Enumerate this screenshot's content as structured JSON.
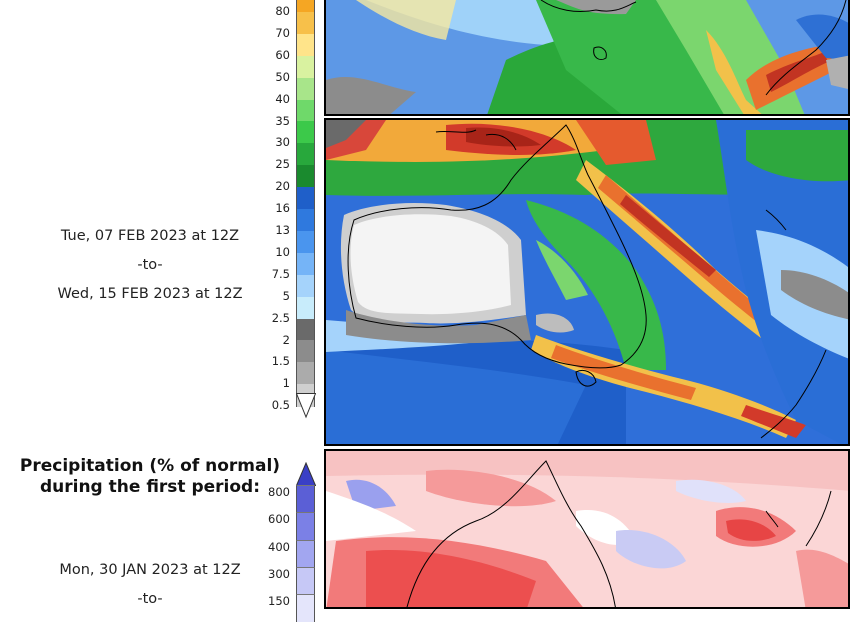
{
  "precip_scale": {
    "labels": [
      "80",
      "70",
      "60",
      "50",
      "40",
      "35",
      "30",
      "25",
      "20",
      "16",
      "13",
      "10",
      "7.5",
      "5",
      "2.5",
      "2",
      "1.5",
      "1",
      "0.5"
    ],
    "colors": [
      "#f5a623",
      "#f7c04a",
      "#ffe48a",
      "#d9f2a0",
      "#a8e58a",
      "#6fd96a",
      "#3cc94a",
      "#28a83c",
      "#1a8a2e",
      "#1f5fc9",
      "#2f79de",
      "#4a95ee",
      "#75b4f7",
      "#a5d3fb",
      "#c8ecfb",
      "#6a6a6a",
      "#8c8c8c",
      "#ababab",
      "#cfcfcf"
    ]
  },
  "period2": {
    "line1": "Tue, 07 FEB 2023 at 12Z",
    "line2": "-to-",
    "line3": "Wed, 15 FEB 2023 at 12Z"
  },
  "percent_panel": {
    "title_line1": "Precipitation (% of normal)",
    "title_line2": "during the first period:",
    "labels": [
      "800",
      "600",
      "400",
      "300",
      "150"
    ],
    "colors": [
      "#5b5fd6",
      "#7b80e6",
      "#a2a6f0",
      "#c6c8f6",
      "#e4e5fb"
    ]
  },
  "period1": {
    "line1": "Mon, 30 JAN 2023 at 12Z",
    "line2": "-to-"
  },
  "maps": {
    "precip_top_partial": "precipitation-map-partial",
    "precip_main": "precipitation-map-australia",
    "percent_normal": "percent-of-normal-map-australia"
  }
}
